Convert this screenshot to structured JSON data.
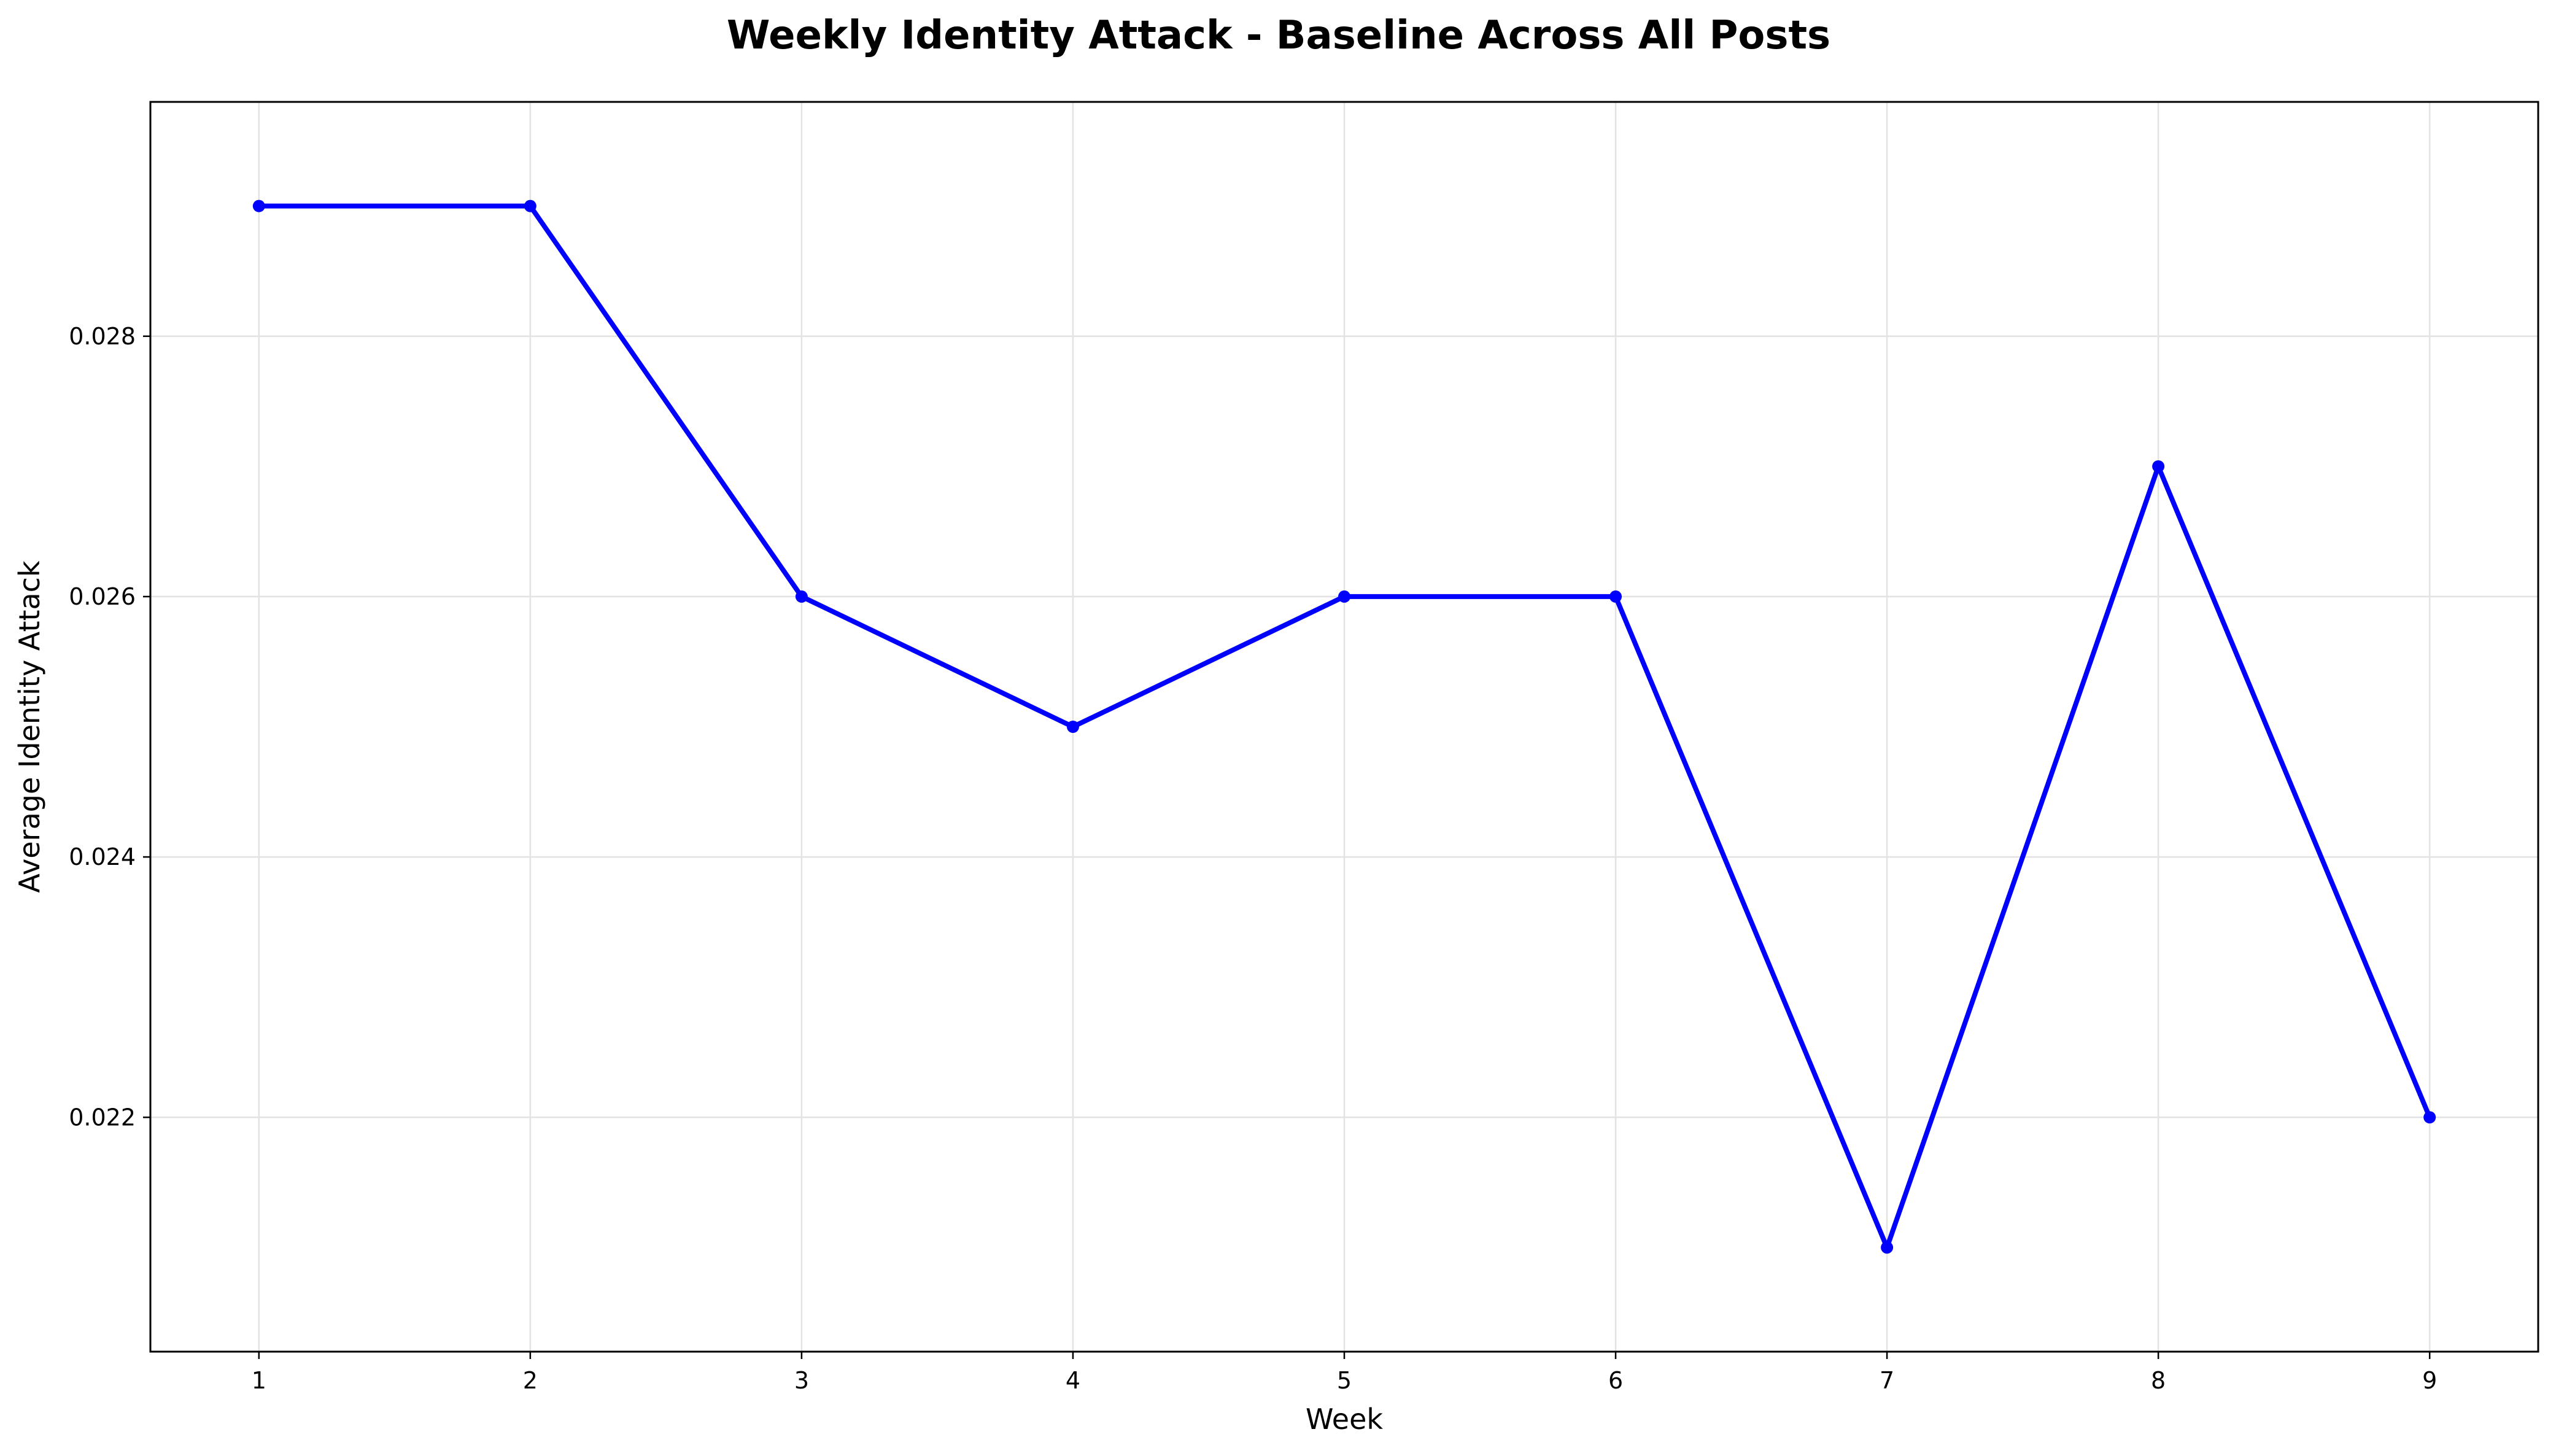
{
  "chart_data": {
    "type": "line",
    "title": "Weekly Identity Attack - Baseline Across All Posts",
    "xlabel": "Week",
    "ylabel": "Average Identity Attack",
    "x": [
      1,
      2,
      3,
      4,
      5,
      6,
      7,
      8,
      9
    ],
    "x_ticks": [
      "1",
      "2",
      "3",
      "4",
      "5",
      "6",
      "7",
      "8",
      "9"
    ],
    "y_ticks": [
      {
        "value": 0.022,
        "label": "0.022"
      },
      {
        "value": 0.024,
        "label": "0.024"
      },
      {
        "value": 0.026,
        "label": "0.026"
      },
      {
        "value": 0.028,
        "label": "0.028"
      }
    ],
    "xlim": [
      0.6,
      9.4
    ],
    "ylim": [
      0.0202,
      0.0298
    ],
    "grid": true,
    "series": [
      {
        "values": [
          0.029,
          0.029,
          0.026,
          0.025,
          0.026,
          0.026,
          0.021,
          0.027,
          0.022
        ],
        "color": "#0000ff",
        "marker": "circle"
      }
    ]
  }
}
